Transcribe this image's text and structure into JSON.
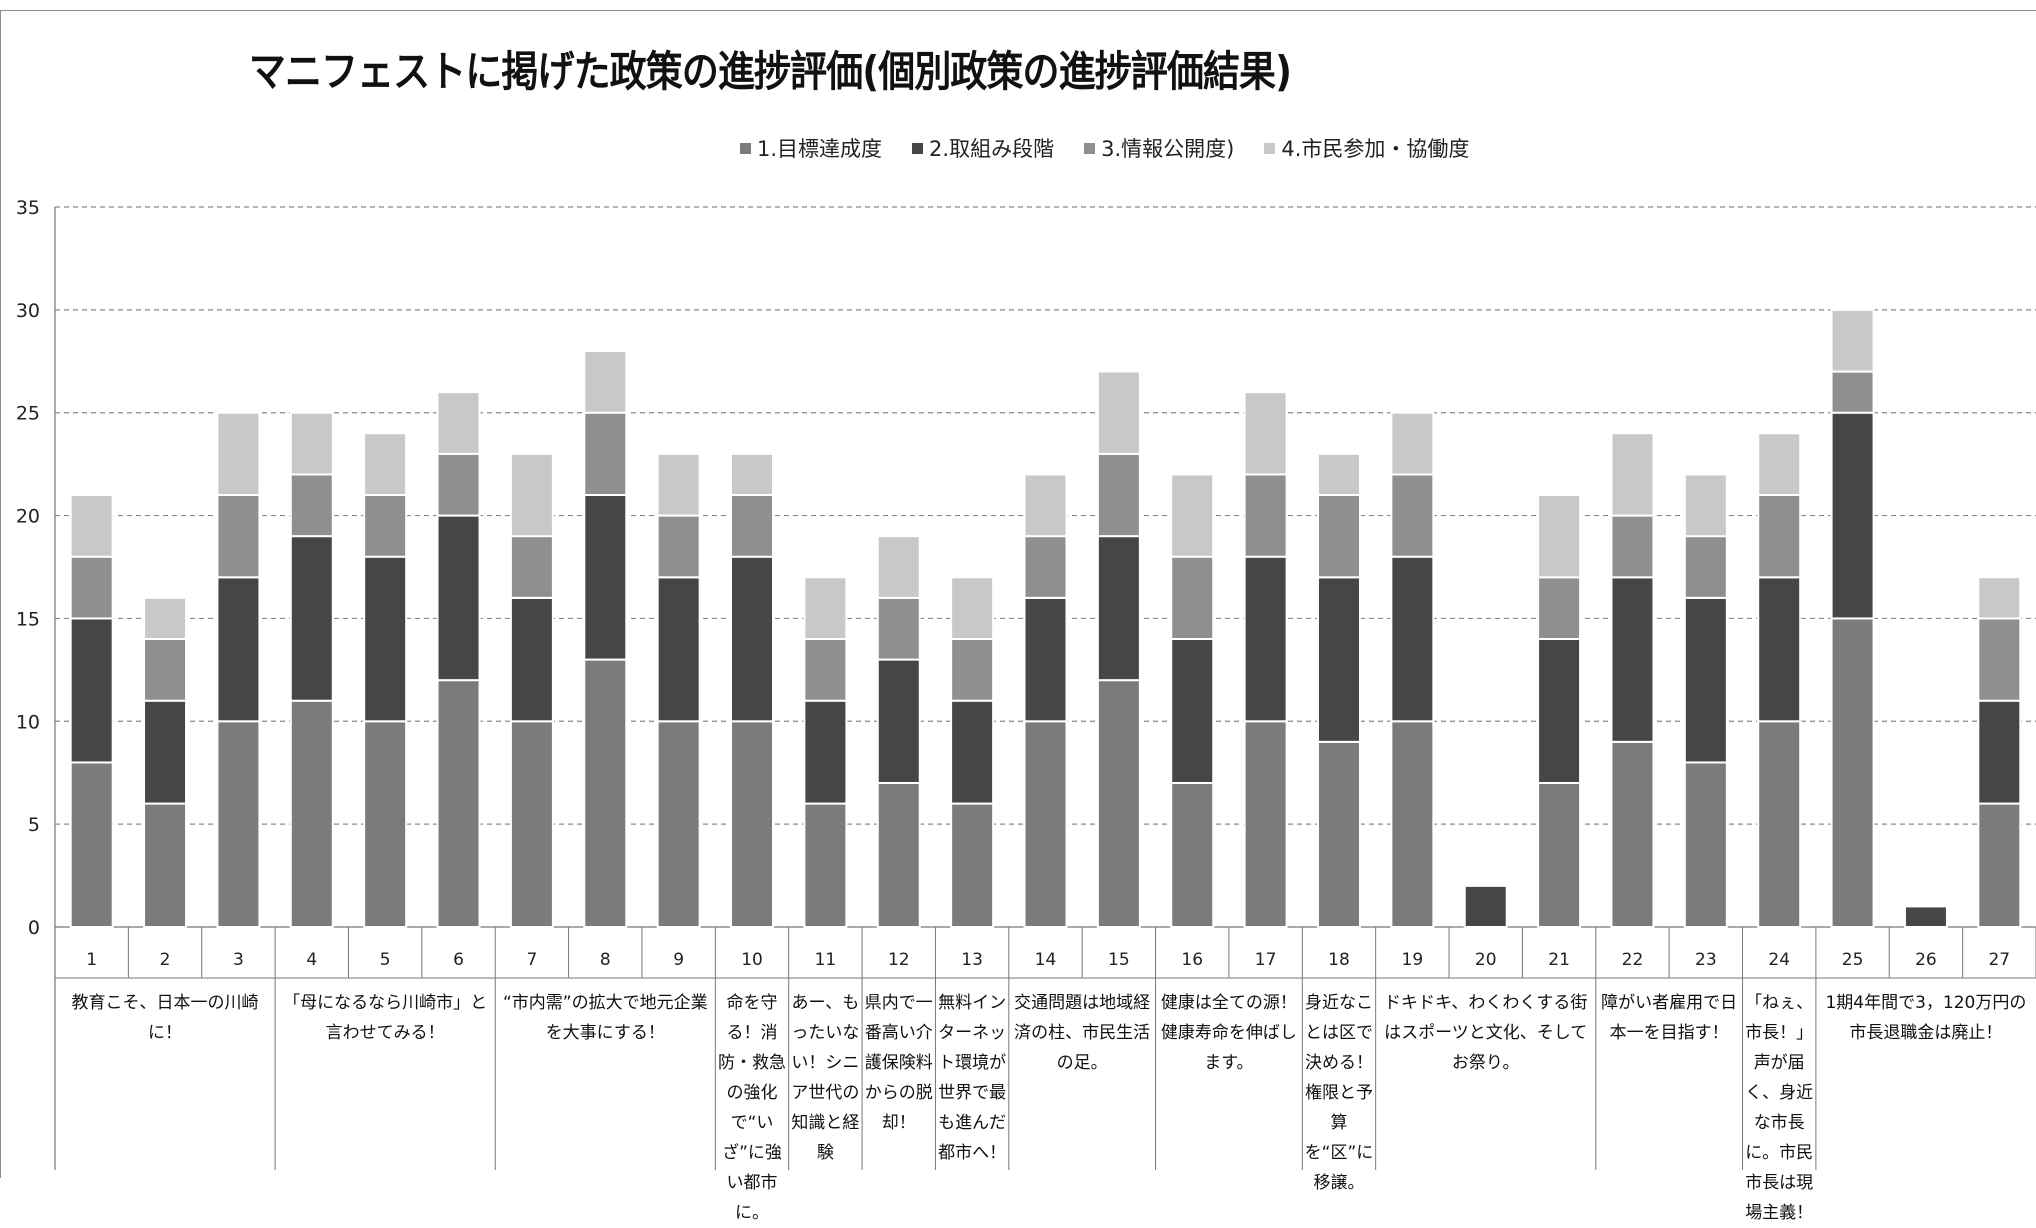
{
  "colors": {
    "s1": "#7b7b7b",
    "s2": "#464646",
    "s3": "#8f8f8f",
    "s4": "#c8c8c8"
  },
  "chart_data": {
    "type": "bar",
    "stacked": true,
    "title": "マニフェストに掲げた政策の進捗評価(個別政策の進捗評価結果)",
    "legend_position": "top",
    "grid": true,
    "ylim": [
      0,
      35
    ],
    "yticks": [
      0,
      5,
      10,
      15,
      20,
      25,
      30,
      35
    ],
    "categories": [
      "1",
      "2",
      "3",
      "4",
      "5",
      "6",
      "7",
      "8",
      "9",
      "10",
      "11",
      "12",
      "13",
      "14",
      "15",
      "16",
      "17",
      "18",
      "19",
      "20",
      "21",
      "22",
      "23",
      "24",
      "25",
      "26",
      "27"
    ],
    "series": [
      {
        "name": "1.目標達成度",
        "values": [
          8,
          6,
          10,
          11,
          10,
          12,
          10,
          13,
          10,
          10,
          6,
          7,
          6,
          10,
          12,
          7,
          10,
          9,
          10,
          0,
          7,
          9,
          8,
          10,
          15,
          0,
          6
        ]
      },
      {
        "name": "2.取組み段階",
        "values": [
          7,
          5,
          7,
          8,
          8,
          8,
          6,
          8,
          7,
          8,
          5,
          6,
          5,
          6,
          7,
          7,
          8,
          8,
          8,
          2,
          7,
          8,
          8,
          7,
          10,
          1,
          5
        ]
      },
      {
        "name": "3.情報公開度)",
        "values": [
          3,
          3,
          4,
          3,
          3,
          3,
          3,
          4,
          3,
          3,
          3,
          3,
          3,
          3,
          4,
          4,
          4,
          4,
          4,
          0,
          3,
          3,
          3,
          4,
          2,
          0,
          4
        ]
      },
      {
        "name": "4.市民参加・協働度",
        "values": [
          3,
          2,
          4,
          3,
          3,
          3,
          4,
          3,
          3,
          2,
          3,
          3,
          3,
          3,
          4,
          4,
          4,
          2,
          3,
          0,
          4,
          4,
          3,
          3,
          3,
          0,
          2
        ]
      }
    ],
    "groups": [
      {
        "label": "教育こそ、日本一の川崎に！",
        "from": 1,
        "to": 3
      },
      {
        "label": "「母になるなら川崎市」と言わせてみる！",
        "from": 4,
        "to": 6
      },
      {
        "label": "“市内需”の拡大で地元企業を大事にする！",
        "from": 7,
        "to": 9
      },
      {
        "label": "命を守る！消防・救急の強化で“いざ”に強い都市に。",
        "from": 10,
        "to": 10
      },
      {
        "label": "あー、もったいない！シニア世代の知識と経験",
        "from": 11,
        "to": 11
      },
      {
        "label": "県内で一番高い介護保険料からの脱却！",
        "from": 12,
        "to": 12
      },
      {
        "label": "無料インターネット環境が世界で最も進んだ都市へ！",
        "from": 13,
        "to": 13
      },
      {
        "label": "交通問題は地域経済の柱、市民生活の足。",
        "from": 14,
        "to": 15
      },
      {
        "label": "健康は全ての源！健康寿命を伸ばします。",
        "from": 16,
        "to": 17
      },
      {
        "label": "身近なことは区で決める！権限と予算を“区”に移譲。",
        "from": 18,
        "to": 18
      },
      {
        "label": "ドキドキ、わくわくする街はスポーツと文化、そしてお祭り。",
        "from": 19,
        "to": 21
      },
      {
        "label": "障がい者雇用で日本一を目指す！",
        "from": 22,
        "to": 23
      },
      {
        "label": "「ねぇ、市長！」声が届く、身近な市長に。市民市長は現場主義！",
        "from": 24,
        "to": 24
      },
      {
        "label": "1期4年間で3，120万円の市長退職金は廃止！",
        "from": 25,
        "to": 27
      }
    ]
  }
}
